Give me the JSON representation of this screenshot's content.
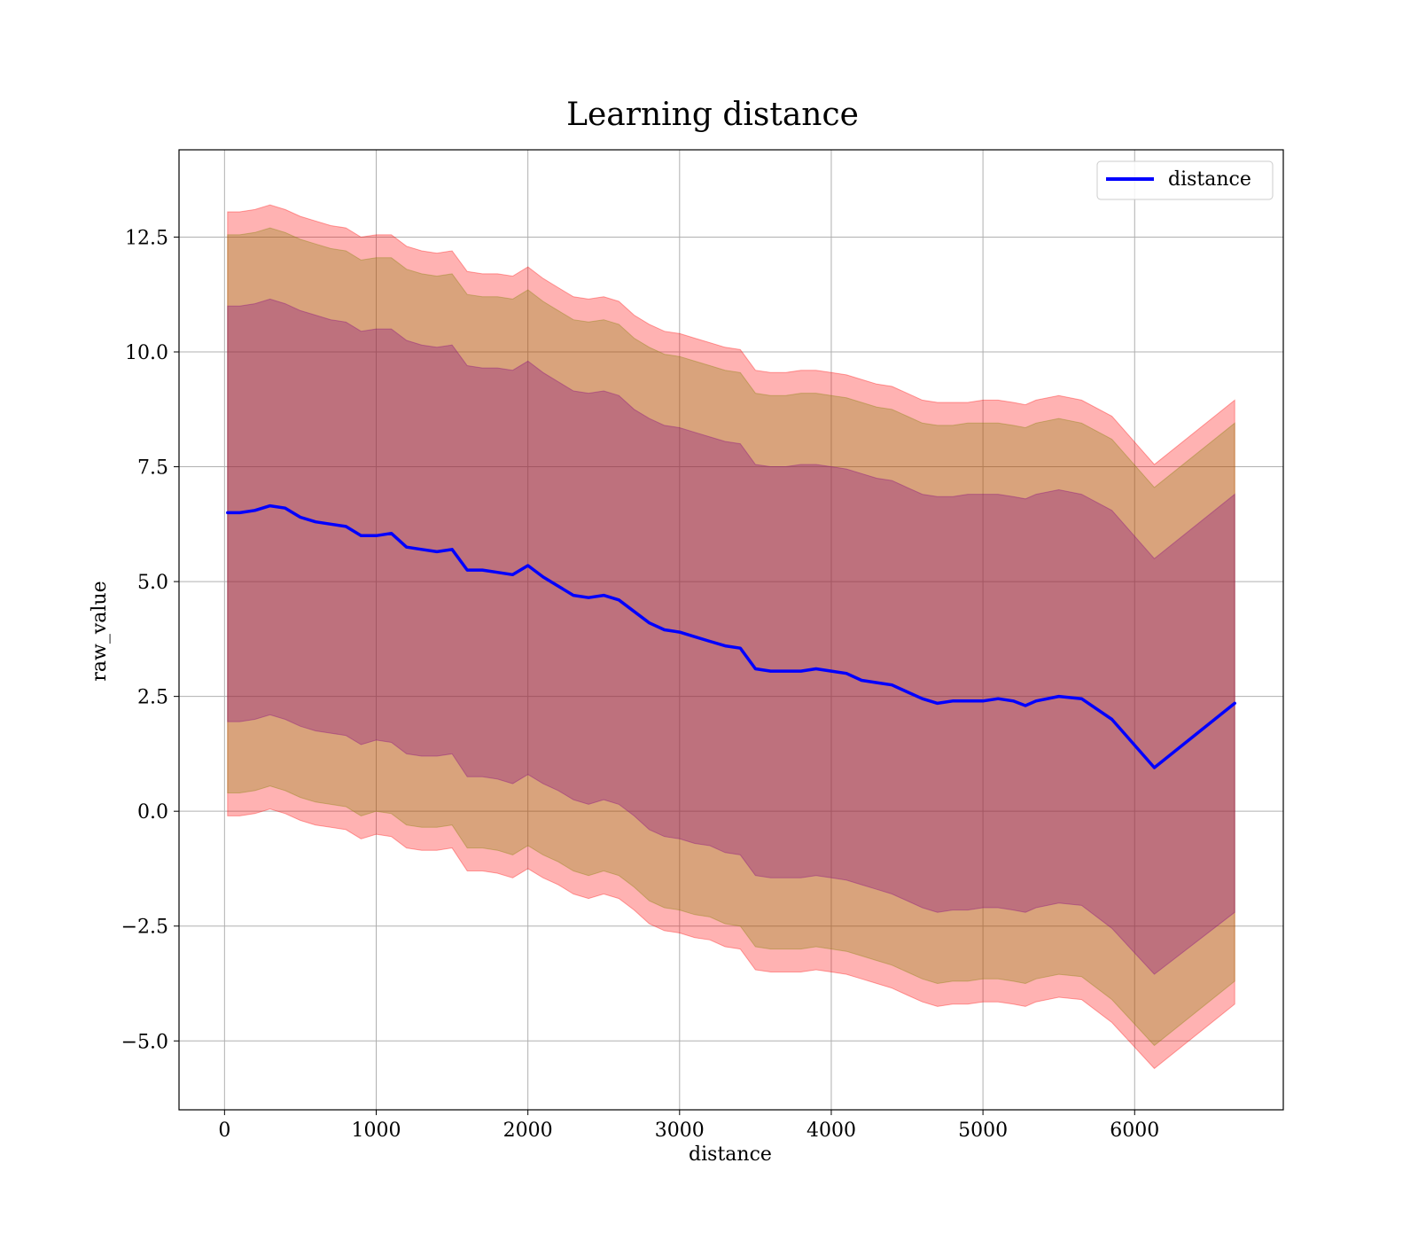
{
  "chart_data": {
    "type": "line",
    "title": "Learning distance",
    "xlabel": "distance",
    "ylabel": "raw_value",
    "xlim": [
      -300,
      6980
    ],
    "ylim": [
      -6.5,
      14.4
    ],
    "grid": true,
    "legend": {
      "position": "top-right",
      "entries": [
        "distance"
      ]
    },
    "x_ticks": [
      0,
      1000,
      2000,
      3000,
      4000,
      5000,
      6000
    ],
    "x_tick_labels": [
      "0",
      "1000",
      "2000",
      "3000",
      "4000",
      "5000",
      "6000"
    ],
    "y_ticks": [
      -5.0,
      -2.5,
      0.0,
      2.5,
      5.0,
      7.5,
      10.0,
      12.5
    ],
    "y_tick_labels": [
      "−5.0",
      "−2.5",
      "0.0",
      "2.5",
      "5.0",
      "7.5",
      "10.0",
      "12.5"
    ],
    "colors": {
      "line": "#0000ff",
      "band_outer": "#ff0000",
      "band_mid": "#808000",
      "band_inner": "#800080"
    },
    "x": [
      20,
      100,
      200,
      300,
      400,
      500,
      600,
      700,
      800,
      900,
      1000,
      1100,
      1200,
      1300,
      1400,
      1500,
      1600,
      1700,
      1800,
      1900,
      2000,
      2100,
      2200,
      2300,
      2400,
      2500,
      2600,
      2700,
      2800,
      2900,
      3000,
      3100,
      3200,
      3300,
      3400,
      3500,
      3600,
      3700,
      3800,
      3900,
      4000,
      4100,
      4200,
      4300,
      4400,
      4500,
      4600,
      4700,
      4800,
      4900,
      5000,
      5100,
      5200,
      5280,
      5350,
      5500,
      5650,
      5850,
      6130,
      6660
    ],
    "series": [
      {
        "name": "distance",
        "values": [
          6.5,
          6.5,
          6.55,
          6.65,
          6.6,
          6.4,
          6.3,
          6.25,
          6.2,
          6.0,
          6.0,
          6.05,
          5.75,
          5.7,
          5.65,
          5.7,
          5.25,
          5.25,
          5.2,
          5.15,
          5.35,
          5.1,
          4.9,
          4.7,
          4.65,
          4.7,
          4.6,
          4.35,
          4.1,
          3.95,
          3.9,
          3.8,
          3.7,
          3.6,
          3.55,
          3.1,
          3.05,
          3.05,
          3.05,
          3.1,
          3.05,
          3.0,
          2.85,
          2.8,
          2.75,
          2.6,
          2.45,
          2.35,
          2.4,
          2.4,
          2.4,
          2.45,
          2.4,
          2.3,
          2.4,
          2.5,
          2.45,
          2.0,
          0.95,
          2.35
        ]
      }
    ],
    "bands": [
      {
        "level": "outer",
        "upper": [
          13.05,
          13.05,
          13.1,
          13.2,
          13.1,
          12.95,
          12.85,
          12.75,
          12.7,
          12.5,
          12.55,
          12.55,
          12.3,
          12.2,
          12.15,
          12.2,
          11.75,
          11.7,
          11.7,
          11.65,
          11.85,
          11.6,
          11.4,
          11.2,
          11.15,
          11.2,
          11.1,
          10.8,
          10.6,
          10.45,
          10.4,
          10.3,
          10.2,
          10.1,
          10.05,
          9.6,
          9.55,
          9.55,
          9.6,
          9.6,
          9.55,
          9.5,
          9.4,
          9.3,
          9.25,
          9.1,
          8.95,
          8.9,
          8.9,
          8.9,
          8.95,
          8.95,
          8.9,
          8.85,
          8.95,
          9.05,
          8.95,
          8.6,
          7.55,
          8.95
        ],
        "lower": [
          -0.1,
          -0.1,
          -0.05,
          0.05,
          -0.05,
          -0.2,
          -0.3,
          -0.35,
          -0.4,
          -0.6,
          -0.5,
          -0.55,
          -0.8,
          -0.85,
          -0.85,
          -0.8,
          -1.3,
          -1.3,
          -1.35,
          -1.45,
          -1.25,
          -1.45,
          -1.6,
          -1.8,
          -1.9,
          -1.8,
          -1.9,
          -2.15,
          -2.45,
          -2.6,
          -2.65,
          -2.75,
          -2.8,
          -2.95,
          -3.0,
          -3.45,
          -3.5,
          -3.5,
          -3.5,
          -3.45,
          -3.5,
          -3.55,
          -3.65,
          -3.75,
          -3.85,
          -4.0,
          -4.15,
          -4.25,
          -4.2,
          -4.2,
          -4.15,
          -4.15,
          -4.2,
          -4.25,
          -4.15,
          -4.05,
          -4.1,
          -4.6,
          -5.6,
          -4.2
        ]
      },
      {
        "level": "mid",
        "upper": [
          12.55,
          12.55,
          12.6,
          12.7,
          12.6,
          12.45,
          12.35,
          12.25,
          12.2,
          12.0,
          12.05,
          12.05,
          11.8,
          11.7,
          11.65,
          11.7,
          11.25,
          11.2,
          11.2,
          11.15,
          11.35,
          11.1,
          10.9,
          10.7,
          10.65,
          10.7,
          10.6,
          10.3,
          10.1,
          9.95,
          9.9,
          9.8,
          9.7,
          9.6,
          9.55,
          9.1,
          9.05,
          9.05,
          9.1,
          9.1,
          9.05,
          9.0,
          8.9,
          8.8,
          8.75,
          8.6,
          8.45,
          8.4,
          8.4,
          8.45,
          8.45,
          8.45,
          8.4,
          8.35,
          8.45,
          8.55,
          8.45,
          8.1,
          7.05,
          8.45
        ],
        "lower": [
          0.4,
          0.4,
          0.45,
          0.55,
          0.45,
          0.3,
          0.2,
          0.15,
          0.1,
          -0.1,
          0.0,
          -0.05,
          -0.3,
          -0.35,
          -0.35,
          -0.3,
          -0.8,
          -0.8,
          -0.85,
          -0.95,
          -0.75,
          -0.95,
          -1.1,
          -1.3,
          -1.4,
          -1.3,
          -1.4,
          -1.65,
          -1.95,
          -2.1,
          -2.15,
          -2.25,
          -2.3,
          -2.45,
          -2.5,
          -2.95,
          -3.0,
          -3.0,
          -3.0,
          -2.95,
          -3.0,
          -3.05,
          -3.15,
          -3.25,
          -3.35,
          -3.5,
          -3.65,
          -3.75,
          -3.7,
          -3.7,
          -3.65,
          -3.65,
          -3.7,
          -3.75,
          -3.65,
          -3.55,
          -3.6,
          -4.1,
          -5.1,
          -3.7
        ]
      },
      {
        "level": "inner",
        "upper": [
          11.0,
          11.0,
          11.05,
          11.15,
          11.05,
          10.9,
          10.8,
          10.7,
          10.65,
          10.45,
          10.5,
          10.5,
          10.25,
          10.15,
          10.1,
          10.15,
          9.7,
          9.65,
          9.65,
          9.6,
          9.8,
          9.55,
          9.35,
          9.15,
          9.1,
          9.15,
          9.05,
          8.75,
          8.55,
          8.4,
          8.35,
          8.25,
          8.15,
          8.05,
          8.0,
          7.55,
          7.5,
          7.5,
          7.55,
          7.55,
          7.5,
          7.45,
          7.35,
          7.25,
          7.2,
          7.05,
          6.9,
          6.85,
          6.85,
          6.9,
          6.9,
          6.9,
          6.85,
          6.8,
          6.9,
          7.0,
          6.9,
          6.55,
          5.5,
          6.9
        ],
        "lower": [
          1.95,
          1.95,
          2.0,
          2.1,
          2.0,
          1.85,
          1.75,
          1.7,
          1.65,
          1.45,
          1.55,
          1.5,
          1.25,
          1.2,
          1.2,
          1.25,
          0.75,
          0.75,
          0.7,
          0.6,
          0.8,
          0.6,
          0.45,
          0.25,
          0.15,
          0.25,
          0.15,
          -0.1,
          -0.4,
          -0.55,
          -0.6,
          -0.7,
          -0.75,
          -0.9,
          -0.95,
          -1.4,
          -1.45,
          -1.45,
          -1.45,
          -1.4,
          -1.45,
          -1.5,
          -1.6,
          -1.7,
          -1.8,
          -1.95,
          -2.1,
          -2.2,
          -2.15,
          -2.15,
          -2.1,
          -2.1,
          -2.15,
          -2.2,
          -2.1,
          -2.0,
          -2.05,
          -2.55,
          -3.55,
          -2.2
        ]
      }
    ]
  }
}
